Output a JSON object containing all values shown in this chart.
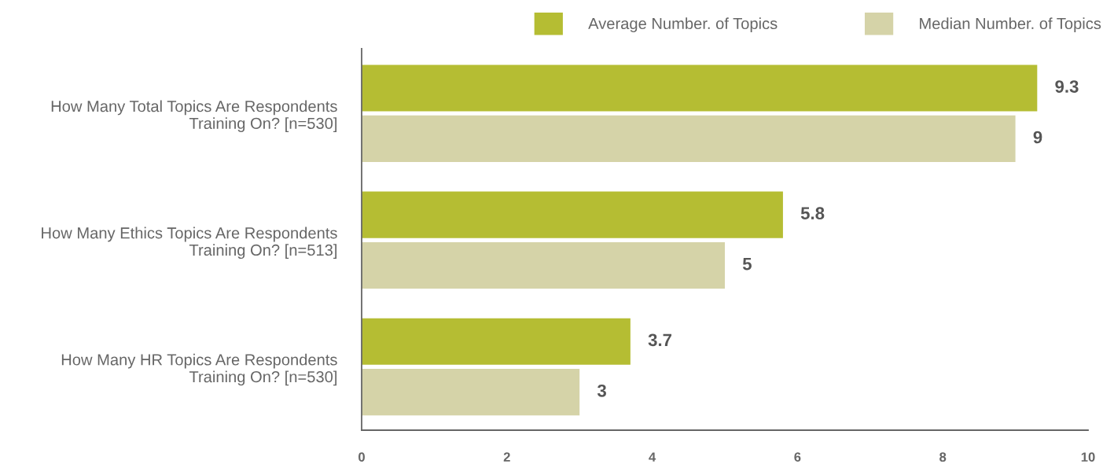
{
  "chart_data": {
    "type": "bar",
    "orientation": "horizontal",
    "categories": [
      "How Many Total Topics Are Respondents\nTraining On? [n=530]",
      "How Many Ethics Topics Are Respondents\nTraining On? [n=513]",
      "How Many HR Topics Are Respondents\nTraining On? [n=530]"
    ],
    "series": [
      {
        "name": "Average Number. of Topics",
        "color": "#b5bd33",
        "values": [
          9.3,
          5.8,
          3.7
        ]
      },
      {
        "name": "Median Number. of Topics",
        "color": "#d5d3a8",
        "values": [
          9,
          5,
          3
        ]
      }
    ],
    "xlim": [
      0,
      10
    ],
    "xticks": [
      0,
      2,
      4,
      6,
      8,
      10
    ],
    "data_labels": true,
    "legend": "top right",
    "grid": false
  }
}
